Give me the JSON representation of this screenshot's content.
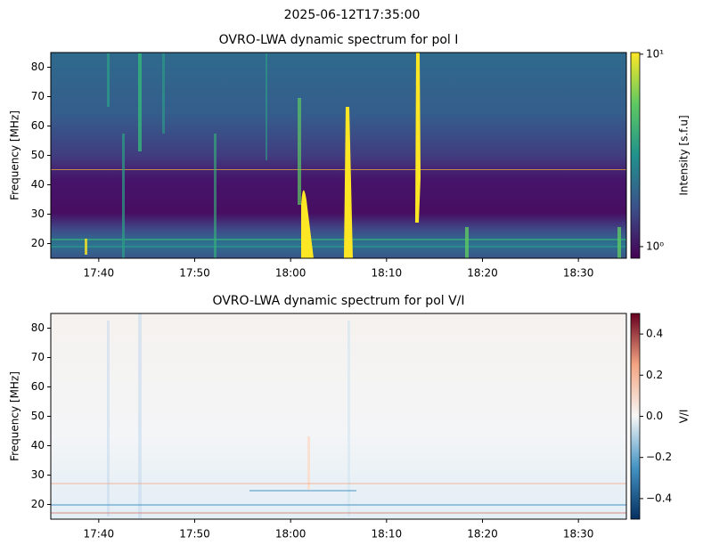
{
  "figure_title": "2025-06-12T17:35:00",
  "chart_data": [
    {
      "type": "heatmap",
      "title": "OVRO-LWA dynamic spectrum for pol I",
      "ylabel": "Frequency [MHz]",
      "xlim": [
        "17:35",
        "18:35"
      ],
      "xticks": [
        "17:40",
        "17:50",
        "18:00",
        "18:10",
        "18:20",
        "18:30"
      ],
      "ylim": [
        15,
        85
      ],
      "yticks": [
        20,
        30,
        40,
        50,
        60,
        70,
        80
      ],
      "colormap": "viridis",
      "colorbar": {
        "label": "Intensity [s.f.u]",
        "scale": "log",
        "lim": [
          0.87,
          10.2
        ],
        "ticks": [
          {
            "value": 1,
            "label": "10⁰"
          },
          {
            "value": 10,
            "label": "10¹"
          }
        ]
      }
    },
    {
      "type": "heatmap",
      "title": "OVRO-LWA dynamic spectrum for pol V/I",
      "ylabel": "Frequency [MHz]",
      "xlim": [
        "17:35",
        "18:35"
      ],
      "xticks": [
        "17:40",
        "17:50",
        "18:00",
        "18:10",
        "18:20",
        "18:30"
      ],
      "ylim": [
        15,
        85
      ],
      "yticks": [
        20,
        30,
        40,
        50,
        60,
        70,
        80
      ],
      "colormap": "RdBu_r",
      "colorbar": {
        "label": "V/I",
        "scale": "linear",
        "lim": [
          -0.5,
          0.5
        ],
        "ticks": [
          {
            "value": -0.4,
            "label": "−0.4"
          },
          {
            "value": -0.2,
            "label": "−0.2"
          },
          {
            "value": 0,
            "label": "0.0"
          },
          0.2,
          0.4
        ]
      }
    }
  ]
}
